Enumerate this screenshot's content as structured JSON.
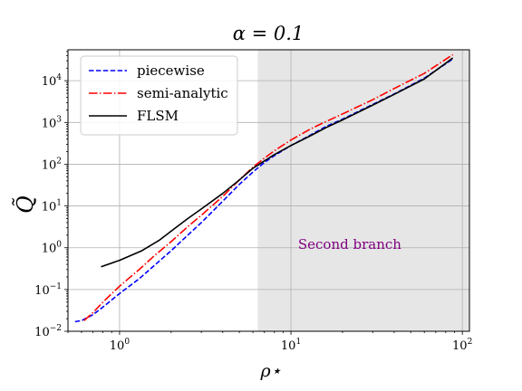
{
  "chart_data": {
    "type": "line",
    "title": "α = 0.1",
    "xlabel": "ρ⋆",
    "ylabel": "Q̃",
    "x_scale": "log",
    "y_scale": "log",
    "xlim": [
      0.5,
      110
    ],
    "ylim": [
      0.01,
      55000
    ],
    "grid": true,
    "legend_position": "top-left",
    "x_ticks": [
      {
        "value": 1,
        "base": "10",
        "exp": "0"
      },
      {
        "value": 10,
        "base": "10",
        "exp": "1"
      },
      {
        "value": 100,
        "base": "10",
        "exp": "2"
      }
    ],
    "y_ticks": [
      {
        "value": 0.01,
        "base": "10",
        "exp": "−2"
      },
      {
        "value": 0.1,
        "base": "10",
        "exp": "−1"
      },
      {
        "value": 1,
        "base": "10",
        "exp": "0"
      },
      {
        "value": 10,
        "base": "10",
        "exp": "1"
      },
      {
        "value": 100,
        "base": "10",
        "exp": "2"
      },
      {
        "value": 1000,
        "base": "10",
        "exp": "3"
      },
      {
        "value": 10000,
        "base": "10",
        "exp": "4"
      }
    ],
    "shaded_region": {
      "x_start": 6.4,
      "x_end": 110,
      "color": "#e6e6e6",
      "label": "Second branch",
      "label_color": "#800080",
      "label_x": 11,
      "label_y": 1.2
    },
    "series": [
      {
        "name": "piecewise",
        "color": "#0000ff",
        "dash": "dashed",
        "x": [
          0.55,
          0.6,
          0.7,
          0.8,
          1.0,
          1.3,
          1.6,
          2.0,
          2.5,
          3.0,
          4.0,
          5.0,
          6.0,
          7.0,
          8.0,
          10.0,
          13.0,
          16.0,
          20.0,
          30.0,
          40.0,
          60.0,
          88.0
        ],
        "y": [
          0.017,
          0.018,
          0.025,
          0.038,
          0.08,
          0.18,
          0.38,
          0.85,
          2.0,
          4.0,
          13.0,
          33.0,
          65.0,
          110.0,
          160.0,
          280.0,
          500.0,
          800.0,
          1200.0,
          2700.0,
          4800.0,
          11500.0,
          33000.0
        ]
      },
      {
        "name": "semi-analytic",
        "color": "#ff0000",
        "dash": "dashdot",
        "x": [
          0.62,
          0.7,
          0.8,
          1.0,
          1.3,
          1.6,
          2.0,
          2.5,
          3.0,
          4.0,
          5.0,
          6.0,
          7.0,
          8.0,
          10.0,
          13.0,
          16.0,
          20.0,
          30.0,
          40.0,
          60.0,
          88.0
        ],
        "y": [
          0.018,
          0.028,
          0.05,
          0.12,
          0.3,
          0.65,
          1.4,
          3.2,
          6.0,
          17.0,
          42.0,
          85.0,
          140.0,
          210.0,
          380.0,
          700.0,
          1050.0,
          1600.0,
          3500.0,
          6500.0,
          15000.0,
          42000.0
        ]
      },
      {
        "name": "FLSM",
        "color": "#000000",
        "dash": "solid",
        "x": [
          0.78,
          1.0,
          1.35,
          1.7,
          2.0,
          2.5,
          3.0,
          4.0,
          5.0,
          6.0,
          7.0,
          8.0,
          10.0,
          13.0,
          16.0,
          20.0,
          30.0,
          40.0,
          60.0,
          88.0
        ],
        "y": [
          0.35,
          0.5,
          0.85,
          1.5,
          2.5,
          5.0,
          8.5,
          20.0,
          42.0,
          80.0,
          120.0,
          170.0,
          280.0,
          480.0,
          750.0,
          1150.0,
          2600.0,
          4700.0,
          11000.0,
          35000.0
        ]
      }
    ]
  }
}
